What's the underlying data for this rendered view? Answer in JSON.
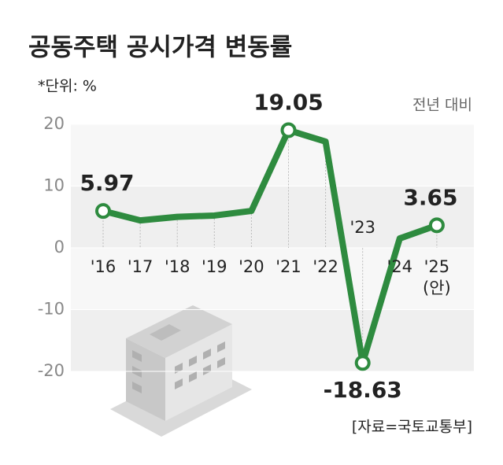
{
  "chart_data": {
    "type": "line",
    "title": "공동주택 공시가격 변동률",
    "unit": "*단위: %",
    "subtitle": "전년 대비",
    "source": "[자료=국토교통부]",
    "categories": [
      "'16",
      "'17",
      "'18",
      "'19",
      "'20",
      "'21",
      "'22",
      "'23",
      "'24",
      "'25"
    ],
    "category_note": "(안)",
    "values": [
      5.97,
      4.44,
      5.02,
      5.23,
      5.98,
      19.05,
      17.2,
      -18.63,
      1.52,
      3.65
    ],
    "value_labels": [
      "5.97",
      null,
      null,
      null,
      null,
      "19.05",
      null,
      "-18.63",
      null,
      "3.65"
    ],
    "color": "#2e8b3f",
    "ylim": [
      -20,
      20
    ],
    "yticks": [
      -20,
      -10,
      0,
      10,
      20
    ],
    "grid": true
  }
}
